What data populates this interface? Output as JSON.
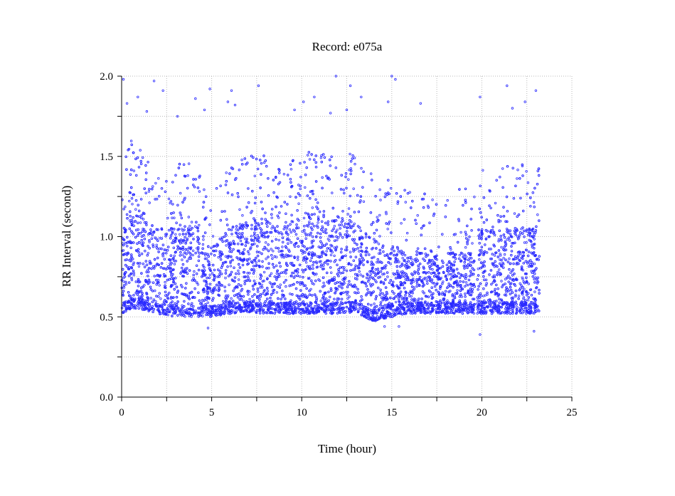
{
  "chart_data": {
    "type": "scatter",
    "title": "Record:  e075a",
    "xlabel": "Time (hour)",
    "ylabel": "RR Interval (second)",
    "xlim": [
      0,
      25
    ],
    "ylim": [
      0.0,
      2.0
    ],
    "x_ticks": [
      0,
      2.5,
      5,
      7.5,
      10,
      12.5,
      15,
      17.5,
      20,
      22.5,
      25
    ],
    "x_tick_labels": [
      "0",
      "",
      "5",
      "",
      "10",
      "",
      "15",
      "",
      "20",
      "",
      "25"
    ],
    "y_ticks": [
      0.0,
      0.25,
      0.5,
      0.75,
      1.0,
      1.25,
      1.5,
      1.75,
      2.0
    ],
    "y_tick_labels": [
      "0.0",
      "",
      "0.5",
      "",
      "1.0",
      "",
      "1.5",
      "",
      "2.0"
    ],
    "grid": true,
    "marker_color": "#2b2bff",
    "marker": "open-circle",
    "recording_end_hours": 23.2,
    "gap_hours": [
      19.6,
      19.75
    ],
    "dense_band_profile": [
      {
        "x": 0.0,
        "low": 0.52,
        "high": 1.05
      },
      {
        "x": 0.5,
        "low": 0.55,
        "high": 1.2
      },
      {
        "x": 1.0,
        "low": 0.55,
        "high": 1.15
      },
      {
        "x": 2.0,
        "low": 0.52,
        "high": 1.05
      },
      {
        "x": 3.0,
        "low": 0.5,
        "high": 1.05
      },
      {
        "x": 4.0,
        "low": 0.5,
        "high": 1.1
      },
      {
        "x": 5.0,
        "low": 0.5,
        "high": 0.95
      },
      {
        "x": 6.0,
        "low": 0.52,
        "high": 1.05
      },
      {
        "x": 7.0,
        "low": 0.53,
        "high": 1.1
      },
      {
        "x": 8.0,
        "low": 0.52,
        "high": 1.12
      },
      {
        "x": 9.0,
        "low": 0.52,
        "high": 1.05
      },
      {
        "x": 10.0,
        "low": 0.52,
        "high": 1.15
      },
      {
        "x": 11.0,
        "low": 0.52,
        "high": 1.15
      },
      {
        "x": 12.0,
        "low": 0.52,
        "high": 1.12
      },
      {
        "x": 13.0,
        "low": 0.53,
        "high": 1.12
      },
      {
        "x": 14.0,
        "low": 0.47,
        "high": 1.0
      },
      {
        "x": 15.0,
        "low": 0.5,
        "high": 0.95
      },
      {
        "x": 16.0,
        "low": 0.52,
        "high": 0.9
      },
      {
        "x": 17.0,
        "low": 0.52,
        "high": 0.9
      },
      {
        "x": 18.0,
        "low": 0.52,
        "high": 0.9
      },
      {
        "x": 19.5,
        "low": 0.52,
        "high": 0.9
      },
      {
        "x": 20.0,
        "low": 0.52,
        "high": 1.05
      },
      {
        "x": 21.0,
        "low": 0.52,
        "high": 1.05
      },
      {
        "x": 22.0,
        "low": 0.52,
        "high": 1.05
      },
      {
        "x": 23.2,
        "low": 0.52,
        "high": 1.05
      }
    ],
    "outliers": [
      {
        "x": 0.1,
        "y": 1.98
      },
      {
        "x": 0.3,
        "y": 1.83
      },
      {
        "x": 0.9,
        "y": 1.87
      },
      {
        "x": 1.4,
        "y": 1.78
      },
      {
        "x": 1.8,
        "y": 1.97
      },
      {
        "x": 2.3,
        "y": 1.91
      },
      {
        "x": 3.1,
        "y": 1.75
      },
      {
        "x": 4.1,
        "y": 1.86
      },
      {
        "x": 4.6,
        "y": 1.79
      },
      {
        "x": 4.9,
        "y": 1.92
      },
      {
        "x": 5.9,
        "y": 1.84
      },
      {
        "x": 6.1,
        "y": 1.91
      },
      {
        "x": 6.3,
        "y": 1.82
      },
      {
        "x": 7.6,
        "y": 1.94
      },
      {
        "x": 9.6,
        "y": 1.79
      },
      {
        "x": 10.1,
        "y": 1.84
      },
      {
        "x": 10.7,
        "y": 1.87
      },
      {
        "x": 11.6,
        "y": 1.77
      },
      {
        "x": 11.9,
        "y": 2.0
      },
      {
        "x": 12.5,
        "y": 1.79
      },
      {
        "x": 12.7,
        "y": 1.94
      },
      {
        "x": 13.3,
        "y": 1.87
      },
      {
        "x": 14.8,
        "y": 1.84
      },
      {
        "x": 15.0,
        "y": 2.0
      },
      {
        "x": 15.2,
        "y": 1.98
      },
      {
        "x": 16.6,
        "y": 1.83
      },
      {
        "x": 19.9,
        "y": 1.87
      },
      {
        "x": 21.4,
        "y": 1.94
      },
      {
        "x": 21.7,
        "y": 1.8
      },
      {
        "x": 22.4,
        "y": 1.84
      },
      {
        "x": 23.0,
        "y": 1.91
      },
      {
        "x": 14.6,
        "y": 0.44
      },
      {
        "x": 19.9,
        "y": 0.39
      },
      {
        "x": 22.9,
        "y": 0.41
      },
      {
        "x": 4.8,
        "y": 0.43
      },
      {
        "x": 15.4,
        "y": 0.44
      }
    ]
  }
}
